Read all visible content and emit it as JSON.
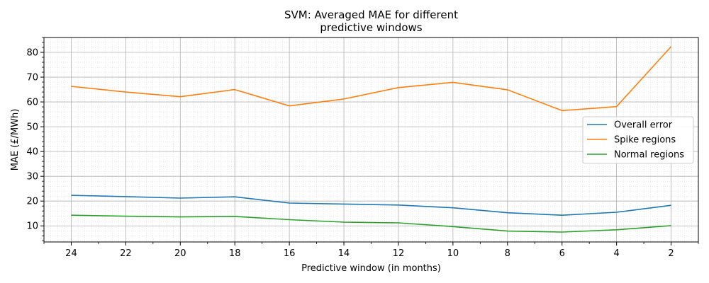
{
  "chart_data": {
    "type": "line",
    "title_lines": [
      "SVM: Averaged MAE for different",
      "predictive windows"
    ],
    "xlabel": "Predictive window (in months)",
    "ylabel": "MAE (£/MWh)",
    "x": [
      24,
      22,
      20,
      18,
      16,
      14,
      12,
      10,
      8,
      6,
      4,
      2
    ],
    "x_inverted": true,
    "xlim": [
      25,
      1
    ],
    "ylim": [
      3.5,
      86
    ],
    "xticks": [
      24,
      22,
      20,
      18,
      16,
      14,
      12,
      10,
      8,
      6,
      4,
      2
    ],
    "yticks": [
      10,
      20,
      30,
      40,
      50,
      60,
      70,
      80
    ],
    "grid": true,
    "minor_grid": true,
    "legend_position": "center-right",
    "series": [
      {
        "name": "Overall error",
        "color": "#1f77b4",
        "values": [
          22.3,
          21.8,
          21.2,
          21.7,
          19.2,
          18.8,
          18.4,
          17.3,
          15.3,
          14.3,
          15.5,
          18.3
        ]
      },
      {
        "name": "Spike regions",
        "color": "#ff7f0e",
        "values": [
          66.3,
          64.0,
          62.1,
          65.0,
          58.4,
          61.2,
          65.8,
          67.9,
          64.9,
          56.5,
          58.1,
          82.3
        ]
      },
      {
        "name": "Normal regions",
        "color": "#2ca02c",
        "values": [
          14.3,
          13.9,
          13.6,
          13.8,
          12.5,
          11.5,
          11.2,
          9.7,
          7.9,
          7.5,
          8.4,
          10.1
        ]
      }
    ]
  }
}
